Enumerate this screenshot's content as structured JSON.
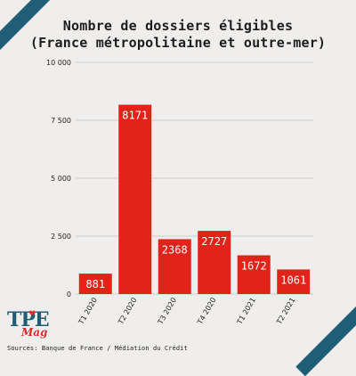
{
  "chart_data": {
    "type": "bar",
    "title_line1": "Nombre de dossiers éligibles",
    "title_line2": "(France métropolitaine et outre-mer)",
    "categories": [
      "T1 2020",
      "T2 2020",
      "T3 2020",
      "T4 2020",
      "T1 2021",
      "T2 2021"
    ],
    "values": [
      881,
      8171,
      2368,
      2727,
      1672,
      1061
    ],
    "data_labels": [
      "881",
      "8171",
      "2368",
      "2727",
      "1672",
      "1061"
    ],
    "y_ticks": [
      0,
      2500,
      5000,
      7500,
      10000
    ],
    "y_tick_labels": [
      "0",
      "2 500",
      "5 000",
      "7 500",
      "10 000"
    ],
    "ylim": [
      0,
      10000
    ],
    "grid": true,
    "bar_color": "#e2231a",
    "grid_color": "#cfcfcf"
  },
  "logo": {
    "main": "TPE",
    "sub": "Mag"
  },
  "sources": "Sources: Banque de France / Médiation du Crédit"
}
